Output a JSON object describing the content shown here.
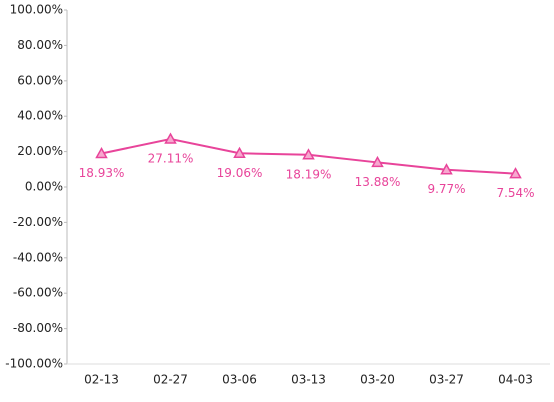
{
  "chart_data": {
    "type": "line",
    "categories": [
      "02-13",
      "02-27",
      "03-06",
      "03-13",
      "03-20",
      "03-27",
      "04-03"
    ],
    "series": [
      {
        "color": "#e8449a",
        "values": [
          18.93,
          27.11,
          19.06,
          18.19,
          13.88,
          9.77,
          7.54
        ],
        "value_labels": [
          "18.93%",
          "27.11%",
          "19.06%",
          "18.19%",
          "13.88%",
          "9.77%",
          "7.54%"
        ]
      }
    ],
    "ylim": [
      -100,
      100
    ],
    "yticks": [
      {
        "value": 100,
        "label": "100.00%"
      },
      {
        "value": 80,
        "label": "80.00%"
      },
      {
        "value": 60,
        "label": "60.00%"
      },
      {
        "value": 40,
        "label": "40.00%"
      },
      {
        "value": 20,
        "label": "20.00%"
      },
      {
        "value": 0,
        "label": "0.00%"
      },
      {
        "value": -20,
        "label": "-20.00%"
      },
      {
        "value": -40,
        "label": "-40.00%"
      },
      {
        "value": -60,
        "label": "-60.00%"
      },
      {
        "value": -80,
        "label": "-80.00%"
      },
      {
        "value": -100,
        "label": "-100.00%"
      }
    ]
  }
}
